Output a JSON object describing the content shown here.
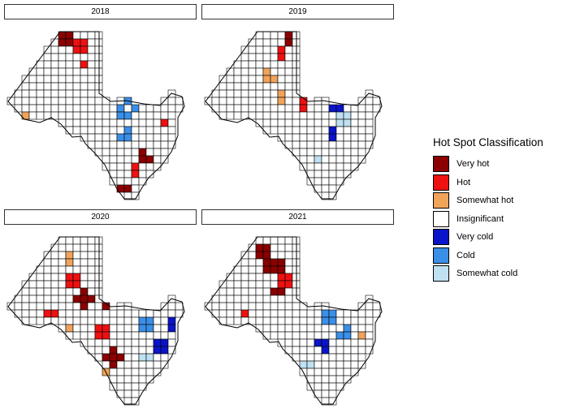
{
  "legend": {
    "title": "Hot Spot Classification",
    "items": [
      {
        "key": "very_hot",
        "label": "Very hot",
        "color": "#8b0000"
      },
      {
        "key": "hot",
        "label": "Hot",
        "color": "#ee1111"
      },
      {
        "key": "somewhat_hot",
        "label": "Somewhat hot",
        "color": "#f0a45a"
      },
      {
        "key": "insignificant",
        "label": "Insignificant",
        "color": "#ffffff"
      },
      {
        "key": "very_cold",
        "label": "Very cold",
        "color": "#0a14c8"
      },
      {
        "key": "cold",
        "label": "Cold",
        "color": "#3a8fe8"
      },
      {
        "key": "somewhat_cold",
        "label": "Somewhat cold",
        "color": "#bfe1f2"
      }
    ]
  },
  "panels": [
    {
      "title": "2018"
    },
    {
      "title": "2019"
    },
    {
      "title": "2020"
    },
    {
      "title": "2021"
    }
  ]
}
